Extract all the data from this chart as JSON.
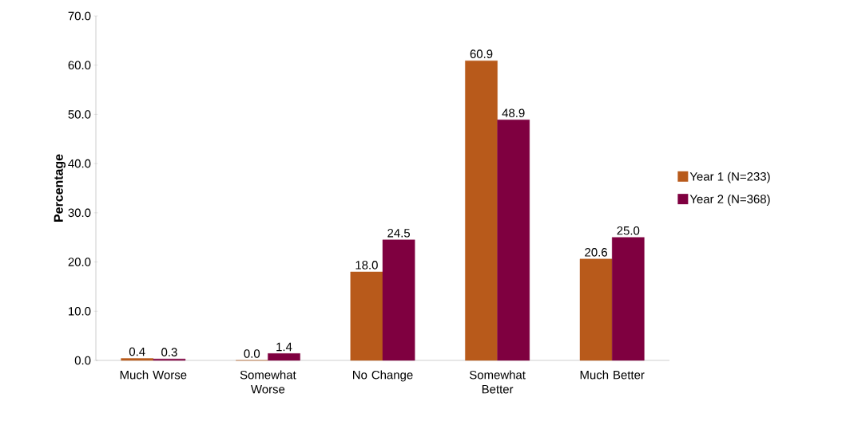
{
  "chart_data": {
    "type": "bar",
    "ylabel": "Percentage",
    "categories": [
      "Much Worse",
      "Somewhat Worse",
      "No Change",
      "Somewhat Better",
      "Much Better"
    ],
    "series": [
      {
        "name": "Year 1 (N=233)",
        "color": "#b85a1b",
        "values": [
          0.4,
          0.0,
          18.0,
          60.9,
          20.6
        ],
        "value_labels": [
          "0.4",
          "0.0",
          "18.0",
          "60.9",
          "20.6"
        ]
      },
      {
        "name": "Year 2 (N=368)",
        "color": "#7f0040",
        "values": [
          0.3,
          1.4,
          24.5,
          48.9,
          25.0
        ],
        "value_labels": [
          "0.3",
          "1.4",
          "24.5",
          "48.9",
          "25.0"
        ]
      }
    ],
    "ylim": [
      0,
      70
    ],
    "yticks": [
      {
        "value": 0,
        "label": "0.0"
      },
      {
        "value": 10,
        "label": "10.0"
      },
      {
        "value": 20,
        "label": "20.0"
      },
      {
        "value": 30,
        "label": "30.0"
      },
      {
        "value": 40,
        "label": "40.0"
      },
      {
        "value": 50,
        "label": "50.0"
      },
      {
        "value": 60,
        "label": "60.0"
      },
      {
        "value": 70,
        "label": "70.0"
      }
    ],
    "legend": "right",
    "grid": false
  }
}
